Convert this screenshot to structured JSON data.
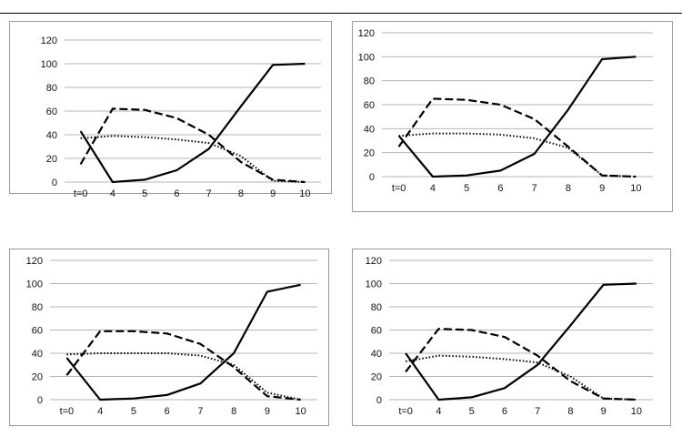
{
  "chart_data": [
    {
      "type": "line",
      "categories": [
        "t=0",
        "4",
        "5",
        "6",
        "7",
        "8",
        "9",
        "10"
      ],
      "ylim": [
        0,
        120
      ],
      "yticks": [
        0,
        20,
        40,
        60,
        80,
        100,
        120
      ],
      "grid": true,
      "series": [
        {
          "style": "solid",
          "values": [
            43,
            0,
            2,
            10,
            28,
            64,
            99,
            100
          ]
        },
        {
          "style": "dashed",
          "values": [
            15,
            62,
            61,
            54,
            40,
            17,
            2,
            0
          ]
        },
        {
          "style": "dotted",
          "values": [
            37,
            39,
            38,
            36,
            33,
            22,
            1,
            0
          ]
        }
      ]
    },
    {
      "type": "line",
      "categories": [
        "t=0",
        "4",
        "5",
        "6",
        "7",
        "8",
        "9",
        "10"
      ],
      "ylim": [
        0,
        120
      ],
      "yticks": [
        0,
        20,
        40,
        60,
        80,
        100,
        120
      ],
      "grid": true,
      "series": [
        {
          "style": "solid",
          "values": [
            34,
            0,
            1,
            5,
            19,
            56,
            98,
            100
          ]
        },
        {
          "style": "dashed",
          "values": [
            25,
            65,
            64,
            60,
            48,
            25,
            1,
            0
          ]
        },
        {
          "style": "dotted",
          "values": [
            34,
            36,
            36,
            35,
            32,
            24,
            1,
            0
          ]
        }
      ]
    },
    {
      "type": "line",
      "categories": [
        "t=0",
        "4",
        "5",
        "6",
        "7",
        "8",
        "9",
        "10"
      ],
      "ylim": [
        0,
        120
      ],
      "yticks": [
        0,
        20,
        40,
        60,
        80,
        100,
        120
      ],
      "grid": true,
      "series": [
        {
          "style": "solid",
          "values": [
            36,
            0,
            1,
            4,
            14,
            40,
            93,
            99
          ]
        },
        {
          "style": "dashed",
          "values": [
            21,
            59,
            59,
            57,
            48,
            28,
            3,
            0
          ]
        },
        {
          "style": "dotted",
          "values": [
            39,
            40,
            40,
            40,
            38,
            30,
            6,
            0
          ]
        }
      ]
    },
    {
      "type": "line",
      "categories": [
        "t=0",
        "4",
        "5",
        "6",
        "7",
        "8",
        "9",
        "10"
      ],
      "ylim": [
        0,
        120
      ],
      "yticks": [
        0,
        20,
        40,
        60,
        80,
        100,
        120
      ],
      "grid": true,
      "series": [
        {
          "style": "solid",
          "values": [
            40,
            0,
            2,
            10,
            30,
            64,
            99,
            100
          ]
        },
        {
          "style": "dashed",
          "values": [
            24,
            61,
            60,
            54,
            38,
            16,
            1,
            0
          ]
        },
        {
          "style": "dotted",
          "values": [
            33,
            38,
            37,
            35,
            32,
            20,
            1,
            0
          ]
        }
      ]
    }
  ]
}
